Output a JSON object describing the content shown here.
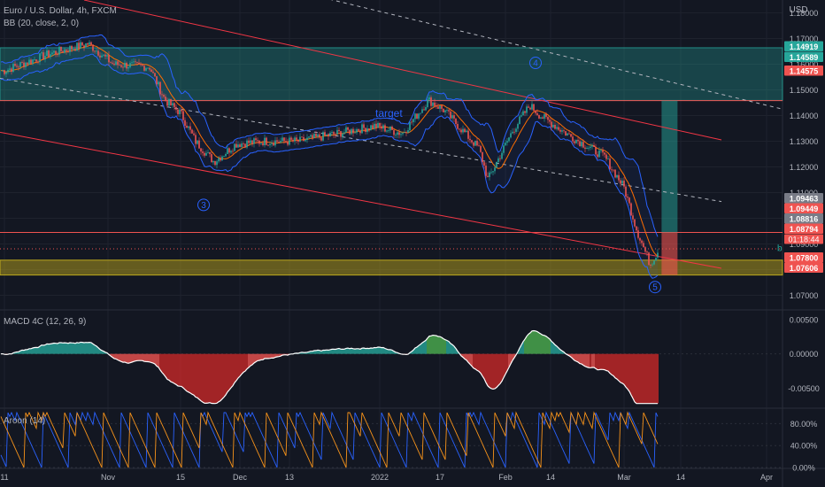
{
  "symbol_title": "Euro / U.S. Dollar, 4h, FXCM",
  "currency": "USD",
  "bb_label": "BB (20, close, 2, 0)",
  "macd_label": "MACD 4C (12, 26, 9)",
  "aroon_label": "Aroon (14)",
  "countdown": "01:18:44",
  "annotations": {
    "target": "target",
    "wave3": "3",
    "wave4": "4",
    "wave5": "5",
    "edge_b": "b"
  },
  "colors": {
    "background": "#131722",
    "candle_up": "#26a69a",
    "candle_down": "#ef5350",
    "bb": "#2962ff",
    "zone_teal": "#1c5b59",
    "zone_yellow": "#8a7a1e",
    "aroon_up": "#f7931a",
    "aroon_down": "#2962ff"
  },
  "chart_data": [
    {
      "type": "candlestick",
      "pane": "price",
      "ylim": [
        1.065,
        1.185
      ],
      "y_ticks": [
        "1.18000",
        "1.17000",
        "1.16000",
        "1.15000",
        "1.14000",
        "1.13000",
        "1.12000",
        "1.11000",
        "1.10000",
        "1.09000",
        "1.08000",
        "1.07000"
      ],
      "x_ticks": [
        "11",
        "Nov",
        "15",
        "Dec",
        "13",
        "2022",
        "17",
        "Feb",
        "14",
        "Mar",
        "14",
        "Apr"
      ],
      "close_path": [
        [
          "Oct 11",
          1.1575
        ],
        [
          "Oct 20",
          1.164
        ],
        [
          "Oct 28",
          1.168
        ],
        [
          "Nov 2",
          1.16
        ],
        [
          "Nov 9",
          1.159
        ],
        [
          "Nov 12",
          1.146
        ],
        [
          "Nov 15",
          1.141
        ],
        [
          "Nov 19",
          1.13
        ],
        [
          "Nov 24",
          1.122
        ],
        [
          "Nov 30",
          1.129
        ],
        [
          "Dec 7",
          1.13
        ],
        [
          "Dec 15",
          1.13
        ],
        [
          "Dec 23",
          1.133
        ],
        [
          "Dec 31",
          1.136
        ],
        [
          "Jan 7",
          1.133
        ],
        [
          "Jan 14",
          1.146
        ],
        [
          "Jan 18",
          1.142
        ],
        [
          "Jan 26",
          1.127
        ],
        [
          "Jan 28",
          1.115
        ],
        [
          "Feb 3",
          1.134
        ],
        [
          "Feb 8",
          1.144
        ],
        [
          "Feb 11",
          1.14
        ],
        [
          "Feb 18",
          1.132
        ],
        [
          "Feb 25",
          1.124
        ],
        [
          "Mar 1",
          1.112
        ],
        [
          "Mar 4",
          1.095
        ],
        [
          "Mar 7",
          1.082
        ],
        [
          "Mar 9",
          1.088
        ]
      ],
      "price_labels": [
        {
          "value": "1.14919",
          "color": "#26a69a"
        },
        {
          "value": "1.14589",
          "color": "#26a69a"
        },
        {
          "value": "1.14575",
          "color": "#ef5350"
        },
        {
          "value": "1.09463",
          "color": "#787b86"
        },
        {
          "value": "1.09449",
          "color": "#ef5350"
        },
        {
          "value": "1.08816",
          "color": "#787b86"
        },
        {
          "value": "1.08794",
          "color": "#ef5350"
        },
        {
          "value": "1.07800",
          "color": "#ef5350"
        },
        {
          "value": "1.07606",
          "color": "#ef5350"
        }
      ],
      "zones": [
        {
          "from": 1.1459,
          "to": 1.1664,
          "color": "#26a69a"
        },
        {
          "from": 1.0779,
          "to": 1.0837,
          "color": "#c9b21d"
        }
      ],
      "horizontal_lines": [
        1.1458,
        1.0945
      ]
    },
    {
      "type": "histogram+line",
      "pane": "macd",
      "ylim": [
        -0.0075,
        0.006
      ],
      "y_ticks": [
        "0.00500",
        "0.00000",
        "-0.00500"
      ]
    },
    {
      "type": "line",
      "pane": "aroon",
      "ylim": [
        0,
        100
      ],
      "y_ticks": [
        "80.00%",
        "40.00%",
        "0.00%"
      ],
      "series": [
        {
          "color": "#f7931a"
        },
        {
          "color": "#2962ff"
        }
      ]
    }
  ]
}
